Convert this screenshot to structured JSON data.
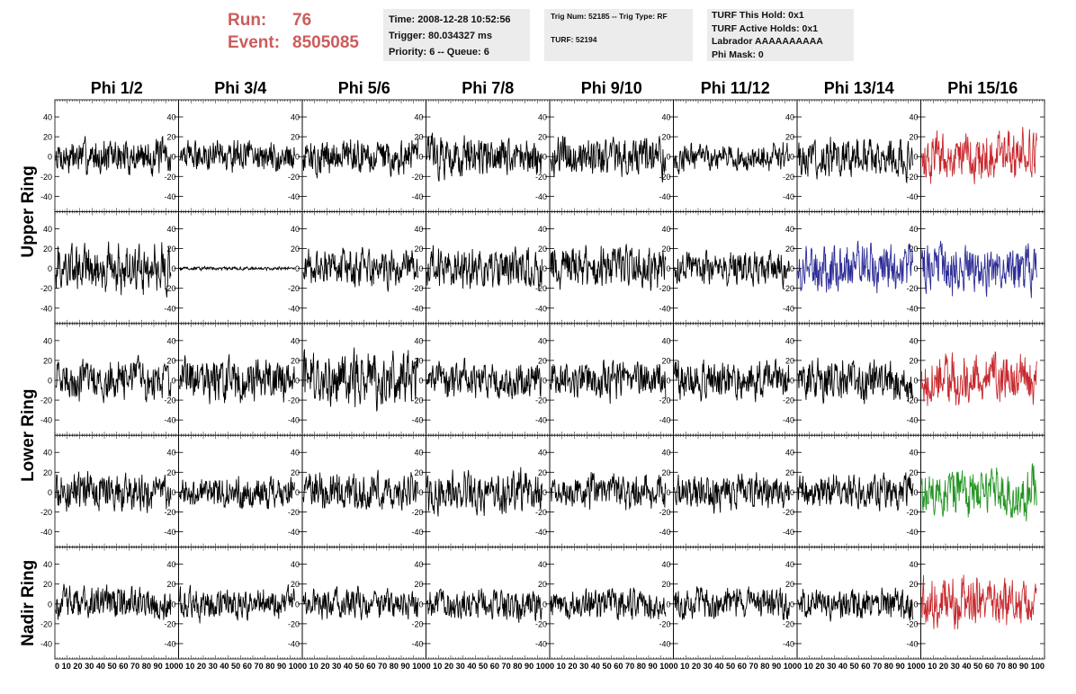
{
  "header": {
    "run_label": "Run:",
    "run_value": "76",
    "event_label": "Event:",
    "event_value": "8505085",
    "time": "Time: 2008-12-28 10:52:56",
    "trigger": "Trigger: 80.034327 ms",
    "priority": "Priority: 6 -- Queue: 6",
    "trig_num": "Trig Num: 52185 -- Trig Type: RF",
    "turf": "TURF: 52194",
    "turf_this_hold": "TURF This Hold: 0x1",
    "turf_active_holds": "TURF Active Holds: 0x1",
    "labrador": "Labrador AAAAAAAAAA",
    "phi_mask": "Phi Mask: 0"
  },
  "chart_data": {
    "type": "line",
    "columns": [
      "Phi 1/2",
      "Phi 3/4",
      "Phi 5/6",
      "Phi 7/8",
      "Phi 9/10",
      "Phi 11/12",
      "Phi 13/14",
      "Phi 15/16"
    ],
    "row_groups": [
      {
        "label": "Upper Ring",
        "rows": [
          0,
          1
        ]
      },
      {
        "label": "Lower Ring",
        "rows": [
          2,
          3
        ]
      },
      {
        "label": "Nadir Ring",
        "rows": [
          4
        ]
      }
    ],
    "xlim": [
      0,
      100
    ],
    "ylim": [
      -50,
      50
    ],
    "yticks": [
      -40,
      -20,
      0,
      20,
      40
    ],
    "x_tick_label_text": "0 10 20 30 40 50 60 70 80 90 100",
    "samples_per_trace": 256,
    "colors": {
      "trace": "#000000",
      "trigger_red": "#c8282d",
      "trigger_blue": "#2b2b96",
      "trigger_green": "#229422",
      "header_red": "#cd5c5c"
    },
    "panels": [
      {
        "row": 0,
        "col": 0,
        "amp": 22
      },
      {
        "row": 0,
        "col": 1,
        "amp": 18
      },
      {
        "row": 0,
        "col": 2,
        "amp": 22
      },
      {
        "row": 0,
        "col": 3,
        "amp": 25
      },
      {
        "row": 0,
        "col": 4,
        "amp": 24
      },
      {
        "row": 0,
        "col": 5,
        "amp": 17
      },
      {
        "row": 0,
        "col": 6,
        "amp": 24
      },
      {
        "row": 0,
        "col": 7,
        "amp": 30,
        "color": "red"
      },
      {
        "row": 1,
        "col": 0,
        "amp": 30
      },
      {
        "row": 1,
        "col": 1,
        "amp": 2
      },
      {
        "row": 1,
        "col": 2,
        "amp": 22
      },
      {
        "row": 1,
        "col": 3,
        "amp": 24
      },
      {
        "row": 1,
        "col": 4,
        "amp": 26
      },
      {
        "row": 1,
        "col": 5,
        "amp": 19
      },
      {
        "row": 1,
        "col": 6,
        "amp": 28,
        "color": "blue"
      },
      {
        "row": 1,
        "col": 7,
        "amp": 30,
        "color": "blue"
      },
      {
        "row": 2,
        "col": 0,
        "amp": 24
      },
      {
        "row": 2,
        "col": 1,
        "amp": 25
      },
      {
        "row": 2,
        "col": 2,
        "amp": 32
      },
      {
        "row": 2,
        "col": 3,
        "amp": 22
      },
      {
        "row": 2,
        "col": 4,
        "amp": 24
      },
      {
        "row": 2,
        "col": 5,
        "amp": 24
      },
      {
        "row": 2,
        "col": 6,
        "amp": 25
      },
      {
        "row": 2,
        "col": 7,
        "amp": 30,
        "color": "red"
      },
      {
        "row": 3,
        "col": 0,
        "amp": 23
      },
      {
        "row": 3,
        "col": 1,
        "amp": 20
      },
      {
        "row": 3,
        "col": 2,
        "amp": 23
      },
      {
        "row": 3,
        "col": 3,
        "amp": 26
      },
      {
        "row": 3,
        "col": 4,
        "amp": 22
      },
      {
        "row": 3,
        "col": 5,
        "amp": 22
      },
      {
        "row": 3,
        "col": 6,
        "amp": 20
      },
      {
        "row": 3,
        "col": 7,
        "amp": 30,
        "color": "green"
      },
      {
        "row": 4,
        "col": 0,
        "amp": 21
      },
      {
        "row": 4,
        "col": 1,
        "amp": 19
      },
      {
        "row": 4,
        "col": 2,
        "amp": 18
      },
      {
        "row": 4,
        "col": 3,
        "amp": 19
      },
      {
        "row": 4,
        "col": 4,
        "amp": 18
      },
      {
        "row": 4,
        "col": 5,
        "amp": 20
      },
      {
        "row": 4,
        "col": 6,
        "amp": 20
      },
      {
        "row": 4,
        "col": 7,
        "amp": 30,
        "color": "red"
      }
    ]
  }
}
